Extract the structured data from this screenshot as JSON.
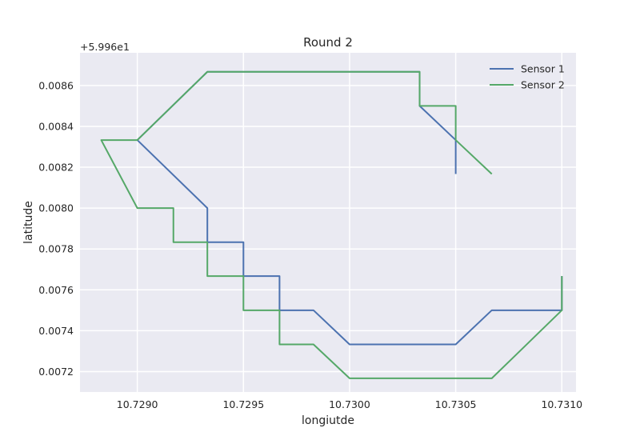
{
  "chart_data": {
    "type": "line",
    "title": "Round 2",
    "xlabel": "longiutde",
    "ylabel": "latitude",
    "y_offset_text": "+5.996e1",
    "xlim": [
      10.72873,
      10.7310667
    ],
    "ylim": [
      0.0071,
      0.00876
    ],
    "x_ticks": [
      10.729,
      10.7295,
      10.73,
      10.7305,
      10.731
    ],
    "x_tick_labels": [
      "10.7290",
      "10.7295",
      "10.7300",
      "10.7305",
      "10.7310"
    ],
    "y_ticks": [
      0.0072,
      0.0074,
      0.0076,
      0.0078,
      0.008,
      0.0082,
      0.0084,
      0.0086
    ],
    "y_tick_labels": [
      "0.0072",
      "0.0074",
      "0.0076",
      "0.0078",
      "0.0080",
      "0.0082",
      "0.0084",
      "0.0086"
    ],
    "grid": true,
    "legend_position": "top-right",
    "series": [
      {
        "name": "Sensor 1",
        "color": "#4c72b0",
        "x": [
          10.7305,
          10.7305,
          10.73033,
          10.73033,
          10.72933,
          10.729,
          10.72933,
          10.72933,
          10.7295,
          10.7295,
          10.72967,
          10.72967,
          10.72983,
          10.73,
          10.7305,
          10.73067,
          10.731,
          10.731
        ],
        "y": [
          0.008167,
          0.008333,
          0.0085,
          0.008667,
          0.008667,
          0.008333,
          0.008,
          0.007833,
          0.007833,
          0.007667,
          0.007667,
          0.0075,
          0.0075,
          0.007333,
          0.007333,
          0.0075,
          0.0075,
          0.007667
        ]
      },
      {
        "name": "Sensor 2",
        "color": "#55a868",
        "x": [
          10.73067,
          10.7305,
          10.7305,
          10.73033,
          10.73033,
          10.72933,
          10.729,
          10.72883,
          10.729,
          10.72917,
          10.72917,
          10.72933,
          10.72933,
          10.7295,
          10.7295,
          10.72967,
          10.72967,
          10.72983,
          10.73,
          10.73067,
          10.731,
          10.731
        ],
        "y": [
          0.008167,
          0.008333,
          0.0085,
          0.0085,
          0.008667,
          0.008667,
          0.008333,
          0.008333,
          0.008,
          0.008,
          0.007833,
          0.007833,
          0.007667,
          0.007667,
          0.0075,
          0.0075,
          0.007333,
          0.007333,
          0.007167,
          0.007167,
          0.0075,
          0.007667
        ]
      }
    ]
  }
}
